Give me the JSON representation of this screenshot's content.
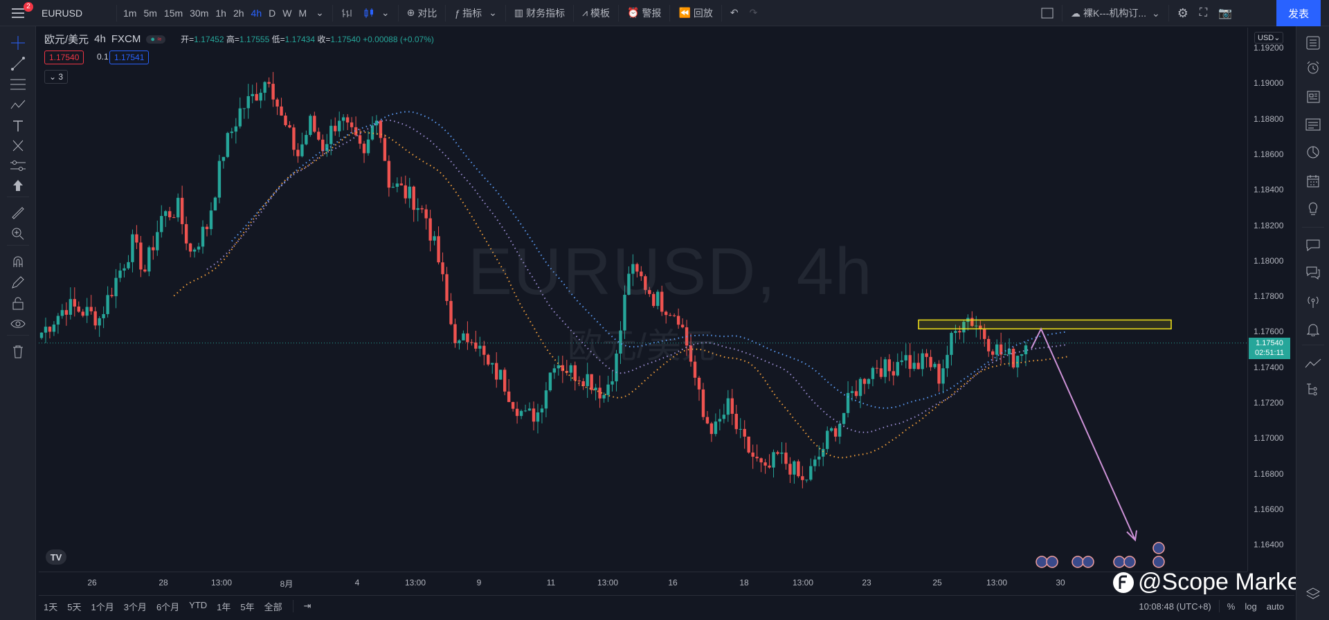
{
  "topbar": {
    "notification_count": "2",
    "symbol": "EURUSD",
    "intervals": [
      "1m",
      "5m",
      "15m",
      "30m",
      "1h",
      "2h",
      "4h",
      "D",
      "W",
      "M"
    ],
    "active_interval": "4h",
    "compare_label": "对比",
    "indicators_label": "指标",
    "financials_label": "财务指标",
    "templates_label": "模板",
    "alert_label": "警报",
    "replay_label": "回放",
    "layout_name": "裸K---机构订...",
    "publish_label": "发表"
  },
  "legend": {
    "symbol_name": "欧元/美元",
    "interval": "4h",
    "source": "FXCM",
    "open_label": "开=",
    "open": "1.17452",
    "high_label": "高=",
    "high": "1.17555",
    "low_label": "低=",
    "low": "1.17434",
    "close_label": "收=",
    "close": "1.17540",
    "change": "+0.00088 (+0.07%)",
    "bid": "1.17540",
    "spread": "0.1",
    "ask": "1.17541",
    "collapsed_count": "3"
  },
  "watermark": {
    "line1": "EURUSD, 4h",
    "line2": "欧元/美元"
  },
  "price_axis": {
    "currency": "USD",
    "ticks": [
      "1.19200",
      "1.19000",
      "1.18800",
      "1.18600",
      "1.18400",
      "1.18200",
      "1.18000",
      "1.17800",
      "1.17600",
      "1.17400",
      "1.17200",
      "1.17000",
      "1.16800",
      "1.16600",
      "1.16400"
    ],
    "current_price": "1.17540",
    "countdown": "02:51:11"
  },
  "time_axis": {
    "labels": [
      "26",
      "28",
      "13:00",
      "8月",
      "4",
      "13:00",
      "9",
      "11",
      "13:00",
      "16",
      "18",
      "13:00",
      "23",
      "25",
      "13:00",
      "30"
    ]
  },
  "bottom_bar": {
    "ranges": [
      "1天",
      "5天",
      "1个月",
      "3个月",
      "6个月",
      "YTD",
      "1年",
      "5年",
      "全部"
    ],
    "clock": "10:08:48 (UTC+8)",
    "percent_label": "%",
    "log_label": "log",
    "auto_label": "auto"
  },
  "brand": {
    "text": "@Scope Markets"
  },
  "colors": {
    "up": "#26a69a",
    "down": "#ef5350",
    "zone": "#f5e51b",
    "arrow": "#ce93d8",
    "ma_blue": "#5b9cf6",
    "ma_purple": "#9c8ed4",
    "ma_orange": "#f7a23b"
  }
}
